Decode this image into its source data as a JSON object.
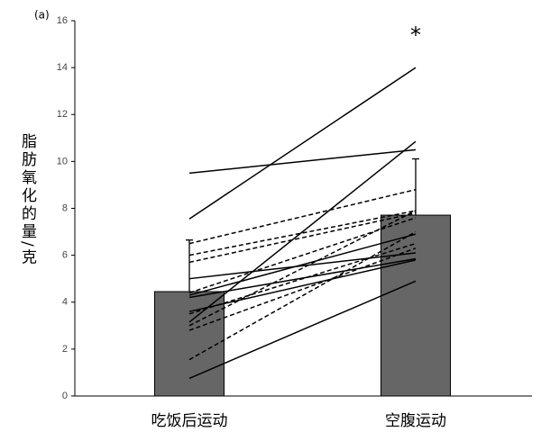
{
  "chart_data": {
    "type": "bar",
    "annotation": "(a)",
    "significance": "*",
    "ylabel": "脂肪氧化的量/克",
    "categories": [
      "吃饭后运动",
      "空腹运动"
    ],
    "values": [
      4.45,
      7.71
    ],
    "errors": [
      2.2,
      2.4
    ],
    "color": "#666666",
    "ylim": [
      0,
      16
    ],
    "yticks": [
      0,
      2,
      4,
      6,
      8,
      10,
      12,
      14,
      16
    ],
    "lines": [
      {
        "style": "solid",
        "color": "#000000",
        "values": [
          9.5,
          10.5
        ]
      },
      {
        "style": "solid",
        "color": "#000000",
        "values": [
          7.55,
          14.0
        ]
      },
      {
        "style": "solid",
        "color": "#000000",
        "values": [
          3.15,
          10.85
        ]
      },
      {
        "style": "solid",
        "color": "#000000",
        "values": [
          5.0,
          6.1
        ]
      },
      {
        "style": "solid",
        "color": "#000000",
        "values": [
          4.3,
          6.9
        ]
      },
      {
        "style": "solid",
        "color": "#000000",
        "values": [
          0.75,
          4.9
        ]
      },
      {
        "style": "solid",
        "color": "#000000",
        "values": [
          4.2,
          5.85
        ]
      },
      {
        "style": "solid",
        "color": "#000000",
        "values": [
          3.6,
          5.8
        ]
      },
      {
        "style": "dashed",
        "color": "#000000",
        "values": [
          6.5,
          8.8
        ]
      },
      {
        "style": "dashed",
        "color": "#000000",
        "values": [
          6.0,
          7.9
        ]
      },
      {
        "style": "dashed",
        "color": "#000000",
        "values": [
          5.7,
          7.8
        ]
      },
      {
        "style": "dashed",
        "color": "#000000",
        "values": [
          4.4,
          7.6
        ]
      },
      {
        "style": "dashed",
        "color": "#000000",
        "values": [
          3.5,
          6.5
        ]
      },
      {
        "style": "dashed",
        "color": "#000000",
        "values": [
          3.0,
          7.9
        ]
      },
      {
        "style": "dashed",
        "color": "#000000",
        "values": [
          2.8,
          6.3
        ]
      },
      {
        "style": "dashed",
        "color": "#000000",
        "values": [
          1.55,
          7.0
        ]
      }
    ]
  }
}
